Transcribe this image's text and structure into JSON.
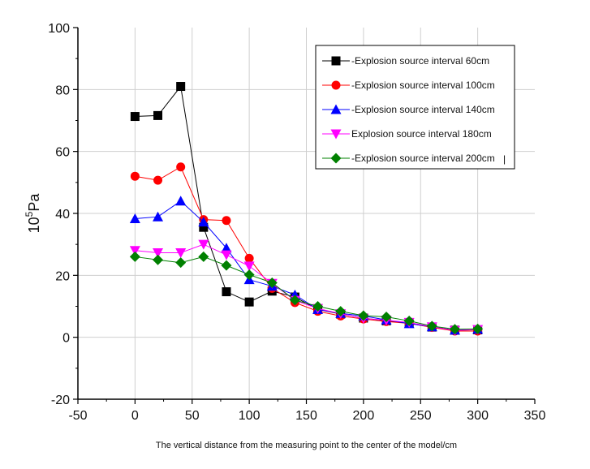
{
  "chart_data": {
    "type": "line",
    "title": "",
    "xlabel": "The vertical distance from the measuring point to the center of the model/cm",
    "ylabel_base": "10",
    "ylabel_sup": "5",
    "ylabel_unit": "Pa",
    "xlim": [
      -50,
      350
    ],
    "ylim": [
      -20,
      100
    ],
    "xticks": [
      -50,
      0,
      50,
      100,
      150,
      200,
      250,
      300,
      350
    ],
    "yticks": [
      -20,
      0,
      20,
      40,
      60,
      80,
      100
    ],
    "grid": true,
    "legend_position": "top-right",
    "x": [
      0,
      20,
      40,
      60,
      80,
      100,
      120,
      140,
      160,
      180,
      200,
      220,
      240,
      260,
      280,
      300
    ],
    "series": [
      {
        "name": "-Explosion source interval 60cm",
        "color": "#000000",
        "marker": "square",
        "values": [
          71.3,
          71.6,
          81.0,
          35.5,
          14.7,
          11.4,
          14.9,
          13.0,
          9.0,
          7.5,
          6.2,
          5.3,
          4.5,
          3.3,
          2.3,
          2.4
        ]
      },
      {
        "name": "-Explosion source interval 100cm",
        "color": "#ff0000",
        "marker": "circle",
        "values": [
          52.0,
          50.7,
          55.0,
          38.0,
          37.7,
          25.5,
          15.8,
          11.2,
          8.4,
          6.9,
          5.9,
          5.1,
          4.5,
          3.2,
          2.0,
          2.0
        ]
      },
      {
        "name": "-Explosion source interval 140cm",
        "color": "#0000ff",
        "marker": "triangle-up",
        "values": [
          38.3,
          38.9,
          44.0,
          37.2,
          28.8,
          18.6,
          16.5,
          13.7,
          9.0,
          7.7,
          6.9,
          5.6,
          4.4,
          3.4,
          2.3,
          2.6
        ]
      },
      {
        "name": "Explosion source interval 180cm",
        "color": "#ff00ff",
        "marker": "triangle-down",
        "values": [
          28.0,
          27.3,
          27.3,
          30.0,
          26.6,
          23.0,
          17.4,
          11.9,
          9.3,
          7.6,
          6.1,
          5.5,
          4.8,
          3.4,
          2.2,
          2.5
        ]
      },
      {
        "name": "-Explosion source interval 200cm",
        "color": "#008000",
        "marker": "diamond",
        "values": [
          26.0,
          25.0,
          24.1,
          26.0,
          23.2,
          20.2,
          17.6,
          12.0,
          10.0,
          8.4,
          7.0,
          6.6,
          5.3,
          3.6,
          2.6,
          2.7
        ]
      }
    ],
    "legend_trailing_mark": "|"
  }
}
